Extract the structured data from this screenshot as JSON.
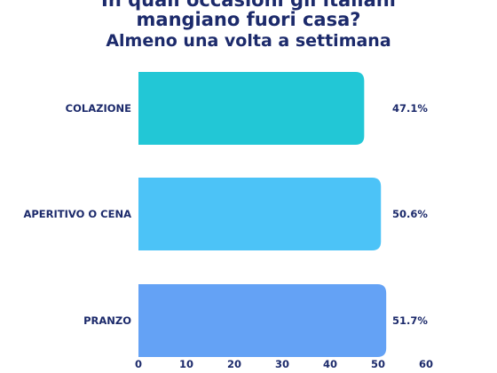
{
  "chart_data": {
    "type": "bar",
    "orientation": "horizontal",
    "title_lines": [
      "In quali occasioni gli italiani",
      "mangiano fuori casa?"
    ],
    "subtitle": "Almeno una volta a settimana",
    "categories": [
      "COLAZIONE",
      "APERITIVO O CENA",
      "PRANZO"
    ],
    "values": [
      47.1,
      50.6,
      51.7
    ],
    "value_labels": [
      "47.1%",
      "50.6%",
      "51.7%"
    ],
    "colors": [
      "#22c7d6",
      "#4cc3f7",
      "#64a2f5"
    ],
    "xlim": [
      0,
      60
    ],
    "xticks": [
      0,
      10,
      20,
      30,
      40,
      50,
      60
    ],
    "xlabel": "",
    "ylabel": "",
    "grid": false,
    "legend": "none"
  }
}
